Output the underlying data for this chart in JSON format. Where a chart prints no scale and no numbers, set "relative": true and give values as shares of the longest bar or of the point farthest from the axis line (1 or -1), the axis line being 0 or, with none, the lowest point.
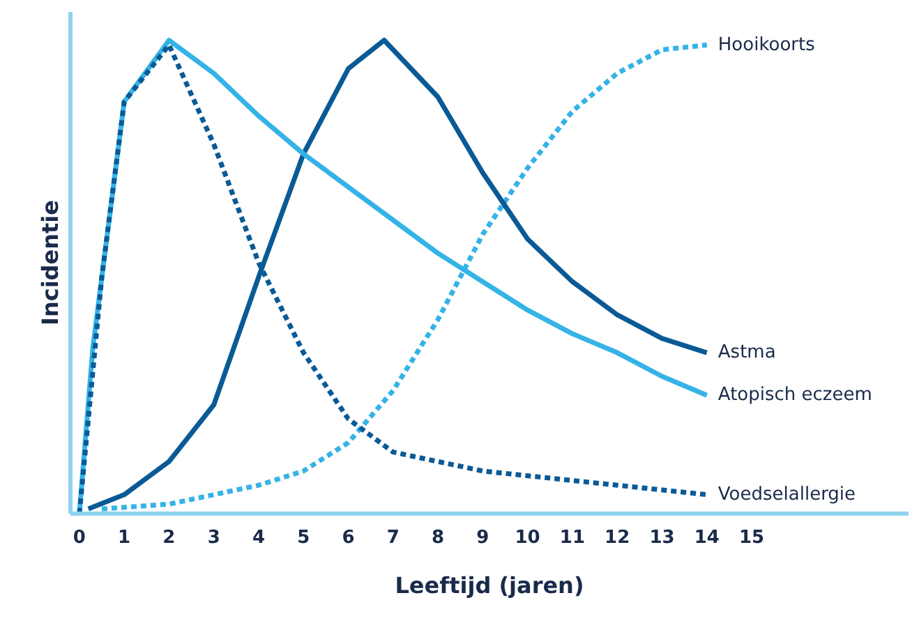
{
  "chart_data": {
    "type": "line",
    "relative": true,
    "xlabel": "Leeftijd (jaren)",
    "ylabel": "Incidentie",
    "xlim": [
      -0.2,
      18.5
    ],
    "xticks": [
      0,
      1,
      2,
      3,
      4,
      5,
      6,
      7,
      8,
      9,
      10,
      11,
      12,
      13,
      14,
      15
    ],
    "marker": "none",
    "series": [
      {
        "name": "Hooikoorts",
        "color": "#35b3e6",
        "line_style": "dashed",
        "x": [
          0.5,
          2,
          3,
          4,
          5,
          6,
          7,
          8,
          9,
          10,
          11,
          12,
          13,
          14
        ],
        "values": [
          0.01,
          0.02,
          0.04,
          0.06,
          0.09,
          0.15,
          0.26,
          0.41,
          0.59,
          0.73,
          0.85,
          0.93,
          0.98,
          0.99
        ]
      },
      {
        "name": "Astma",
        "color": "#0a5a96",
        "line_style": "solid",
        "x": [
          0.2,
          1,
          2,
          3,
          4,
          5,
          6,
          6.8,
          8,
          9,
          10,
          11,
          12,
          13,
          14
        ],
        "values": [
          0.01,
          0.04,
          0.11,
          0.23,
          0.5,
          0.76,
          0.94,
          1.0,
          0.88,
          0.72,
          0.58,
          0.49,
          0.42,
          0.37,
          0.34
        ]
      },
      {
        "name": "Atopisch eczeem",
        "color": "#35b3e6",
        "line_style": "solid",
        "x": [
          0,
          0.3,
          1,
          2,
          3,
          4,
          5,
          6,
          7,
          8,
          9,
          10,
          11,
          12,
          13,
          14
        ],
        "values": [
          0,
          0.35,
          0.87,
          1.0,
          0.93,
          0.84,
          0.76,
          0.69,
          0.62,
          0.55,
          0.49,
          0.43,
          0.38,
          0.34,
          0.29,
          0.25
        ]
      },
      {
        "name": "Voedselallergie",
        "color": "#0a5a96",
        "line_style": "dashed",
        "x": [
          0,
          0.5,
          1,
          2,
          3,
          4,
          5,
          6,
          7,
          8,
          9,
          10,
          11,
          12,
          13,
          14
        ],
        "values": [
          0,
          0.5,
          0.87,
          0.99,
          0.78,
          0.53,
          0.34,
          0.2,
          0.13,
          0.11,
          0.09,
          0.08,
          0.07,
          0.06,
          0.05,
          0.04
        ]
      }
    ]
  }
}
